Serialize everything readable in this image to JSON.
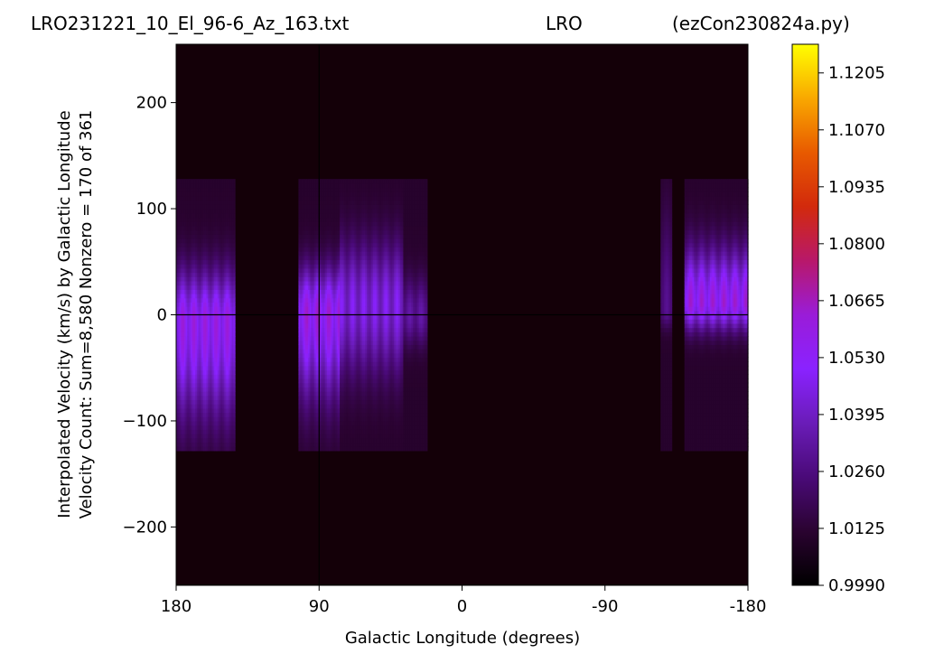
{
  "header": {
    "title_left": "LRO231221_10_El_96-6_Az_163.txt",
    "title_center": "LRO",
    "title_right": "(ezCon230824a.py)"
  },
  "chart_data": {
    "type": "heatmap",
    "title": "LRO231221_10_El_96-6_Az_163.txt        LRO        (ezCon230824a.py)",
    "xlabel": "Galactic Longitude (degrees)",
    "ylabel": "Interpolated Velocity (km/s) by Galactic Longitude",
    "ylabel2": "Velocity Count: Sum=8,580 Nonzero = 170 of 361",
    "xlim": [
      180,
      -180
    ],
    "ylim": [
      -255,
      255
    ],
    "x_ticks": [
      180,
      90,
      0,
      -90,
      -180
    ],
    "x_tick_labels": [
      "180",
      "90",
      "0",
      "-90",
      "-180"
    ],
    "y_ticks": [
      -200,
      -100,
      0,
      100,
      200
    ],
    "y_tick_labels": [
      "−200",
      "−100",
      "0",
      "100",
      "200"
    ],
    "colormap": "gnuplot",
    "colorbar": {
      "min": 0.999,
      "max": 1.1273,
      "ticks": [
        0.999,
        1.0125,
        1.026,
        1.0395,
        1.053,
        1.0665,
        1.08,
        1.0935,
        1.107,
        1.1205
      ],
      "tick_labels": [
        "0.9990",
        "1.0125",
        "1.0260",
        "1.0395",
        "1.0530",
        "1.0665",
        "1.0800",
        "1.0935",
        "1.1070",
        "1.1205"
      ]
    },
    "grid": false,
    "crosshair": {
      "x": 90,
      "y": 0
    },
    "velocity_range": [
      -128,
      128
    ],
    "regions": [
      {
        "lon_range": [
          180,
          143
        ],
        "peak_velocity": -8,
        "peak_value": 1.064,
        "width_low": 60,
        "width_high": 35
      },
      {
        "lon_range": [
          103,
          77
        ],
        "peak_velocity": 2,
        "peak_value": 1.066,
        "width_low": 55,
        "width_high": 30
      },
      {
        "lon_range": [
          77,
          37
        ],
        "peak_velocity": 10,
        "peak_value": 1.05,
        "width_low": 45,
        "width_high": 40
      },
      {
        "lon_range": [
          37,
          22
        ],
        "peak_velocity": 0,
        "peak_value": 1.035,
        "width_low": 20,
        "width_high": 25
      },
      {
        "lon_range": [
          -125,
          -132
        ],
        "peak_velocity": 5,
        "peak_value": 1.03,
        "width_low": 12,
        "width_high": 60
      },
      {
        "lon_range": [
          -140,
          -180
        ],
        "peak_velocity": 12,
        "peak_value": 1.066,
        "width_low": 18,
        "width_high": 35
      }
    ]
  }
}
